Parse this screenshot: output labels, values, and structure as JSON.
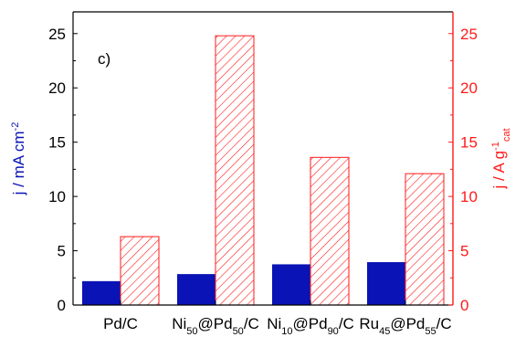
{
  "chart_data": {
    "type": "bar",
    "panel_label": "c)",
    "categories": [
      {
        "text": "Pd/C",
        "parts": [
          {
            "t": "Pd/C"
          }
        ]
      },
      {
        "text": "Ni50@Pd50/C",
        "parts": [
          {
            "t": "Ni"
          },
          {
            "t": "50",
            "sub": true
          },
          {
            "t": "@Pd"
          },
          {
            "t": "50",
            "sub": true
          },
          {
            "t": "/C"
          }
        ]
      },
      {
        "text": "Ni10@Pd90/C",
        "parts": [
          {
            "t": "Ni"
          },
          {
            "t": "10",
            "sub": true
          },
          {
            "t": "@Pd"
          },
          {
            "t": "90",
            "sub": true
          },
          {
            "t": "/C"
          }
        ]
      },
      {
        "text": "Ru45@Pd55/C",
        "parts": [
          {
            "t": "Ru"
          },
          {
            "t": "45",
            "sub": true
          },
          {
            "t": "@Pd"
          },
          {
            "t": "55",
            "sub": true
          },
          {
            "t": "/C"
          }
        ]
      }
    ],
    "series": [
      {
        "axis": "left",
        "values": [
          2.2,
          2.85,
          3.75,
          3.95
        ],
        "color": "#0a13b5",
        "fill": "solid"
      },
      {
        "axis": "right",
        "values": [
          6.3,
          24.8,
          13.6,
          12.1
        ],
        "color": "#ff1a1a",
        "fill": "hatched"
      }
    ],
    "ylabel_left": "j / mA cm-2",
    "ylabel_left_parts": [
      {
        "t": "j / mA cm"
      },
      {
        "t": "-2",
        "sup": true
      }
    ],
    "ylabel_right": "j / A g-1 cat",
    "ylabel_right_parts": [
      {
        "t": "j / A g"
      },
      {
        "t": "-1",
        "sup": true
      },
      {
        "t": "cat",
        "sub": true
      }
    ],
    "ylim_left": [
      0,
      27
    ],
    "ylim_right": [
      0,
      27
    ],
    "yticks_left": [
      0,
      5,
      10,
      15,
      20,
      25
    ],
    "yticks_right": [
      0,
      5,
      10,
      15,
      20,
      25
    ],
    "left_axis_color": "#000000",
    "left_label_color": "#0a13b5",
    "right_axis_color": "#ff1a1a",
    "grid": false
  }
}
